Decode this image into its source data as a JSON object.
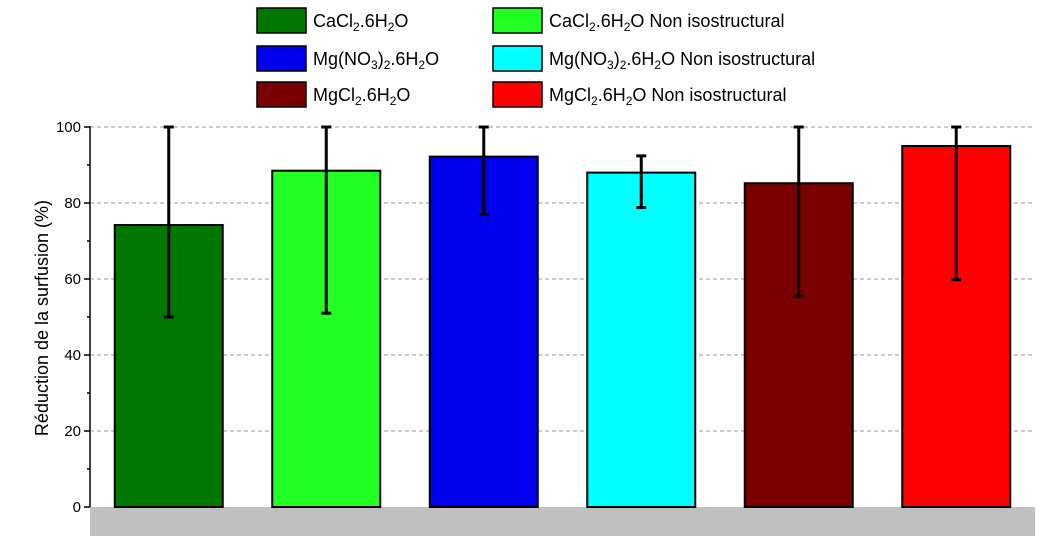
{
  "chart_data": {
    "type": "bar",
    "title": "",
    "xlabel": "",
    "ylabel": "Réduction de la surfusion (%)",
    "ylim": [
      0,
      100
    ],
    "yticks": [
      0,
      20,
      40,
      60,
      80,
      100
    ],
    "grid": true,
    "legend_position": "top",
    "series": [
      {
        "name": "CaCl2.6H2O",
        "label_parts": [
          [
            "CaCl",
            ""
          ],
          [
            "2",
            "sub"
          ],
          [
            ".6H",
            ""
          ],
          [
            "2",
            "sub"
          ],
          [
            "O",
            ""
          ]
        ],
        "value": 74.2,
        "err_low": 50,
        "err_high": 100,
        "color": "#007700"
      },
      {
        "name": "CaCl2.6H2O Non isostructural",
        "label_parts": [
          [
            "CaCl",
            ""
          ],
          [
            "2",
            "sub"
          ],
          [
            ".6H",
            ""
          ],
          [
            "2",
            "sub"
          ],
          [
            "O Non isostructural",
            ""
          ]
        ],
        "value": 88.5,
        "err_low": 51,
        "err_high": 100,
        "color": "#22ff22"
      },
      {
        "name": "Mg(NO3)2.6H2O",
        "label_parts": [
          [
            "Mg(NO",
            ""
          ],
          [
            "3",
            "sub"
          ],
          [
            ")",
            ""
          ],
          [
            "2",
            "sub"
          ],
          [
            ".6H",
            ""
          ],
          [
            "2",
            "sub"
          ],
          [
            "O",
            ""
          ]
        ],
        "value": 92.2,
        "err_low": 77,
        "err_high": 100,
        "color": "#0000ee"
      },
      {
        "name": "Mg(NO3)2.6H2O Non isostructural",
        "label_parts": [
          [
            "Mg(NO",
            ""
          ],
          [
            "3",
            "sub"
          ],
          [
            ")",
            ""
          ],
          [
            "2",
            "sub"
          ],
          [
            ".6H",
            ""
          ],
          [
            "2",
            "sub"
          ],
          [
            "O Non isostructural",
            ""
          ]
        ],
        "value": 88.0,
        "err_low": 78.8,
        "err_high": 92.4,
        "color": "#00ffff"
      },
      {
        "name": "MgCl2.6H2O",
        "label_parts": [
          [
            "MgCl",
            ""
          ],
          [
            "2",
            "sub"
          ],
          [
            ".6H",
            ""
          ],
          [
            "2",
            "sub"
          ],
          [
            "O",
            ""
          ]
        ],
        "value": 85.2,
        "err_low": 55.5,
        "err_high": 100,
        "color": "#7a0000"
      },
      {
        "name": "MgCl2.6H2O Non isostructural",
        "label_parts": [
          [
            "MgCl",
            ""
          ],
          [
            "2",
            "sub"
          ],
          [
            ".6H",
            ""
          ],
          [
            "2",
            "sub"
          ],
          [
            "O Non isostructural",
            ""
          ]
        ],
        "value": 95.0,
        "err_low": 59.8,
        "err_high": 100,
        "color": "#ff0000"
      }
    ]
  }
}
